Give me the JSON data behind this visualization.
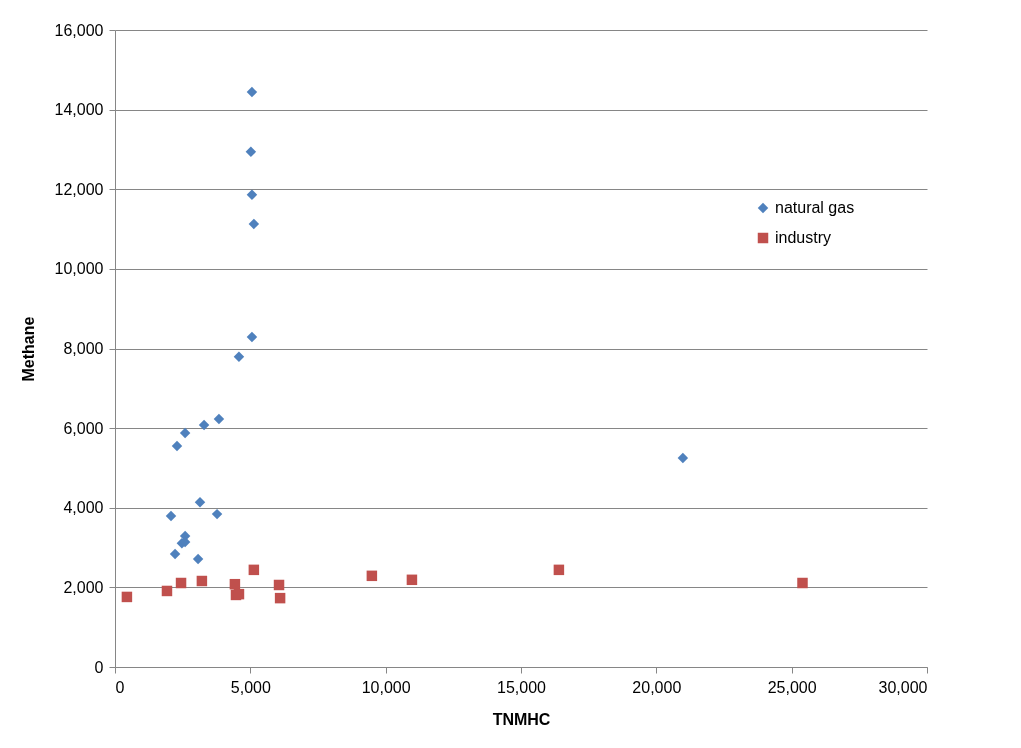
{
  "chart_data": {
    "type": "scatter",
    "xlabel": "TNMHC",
    "ylabel": "Methane",
    "xlim": [
      0,
      30000
    ],
    "xticks": [
      {
        "value": 0,
        "label": "0"
      },
      {
        "value": 5000,
        "label": "5,000"
      },
      {
        "value": 10000,
        "label": "10,000"
      },
      {
        "value": 15000,
        "label": "15,000"
      },
      {
        "value": 20000,
        "label": "20,000"
      },
      {
        "value": 25000,
        "label": "25,000"
      },
      {
        "value": 30000,
        "label": "30,000"
      }
    ],
    "ylim": [
      0,
      16000
    ],
    "yticks": [
      {
        "value": 0,
        "label": "0"
      },
      {
        "value": 2000,
        "label": "2,000"
      },
      {
        "value": 4000,
        "label": "4,000"
      },
      {
        "value": 6000,
        "label": "6,000"
      },
      {
        "value": 8000,
        "label": "8,000"
      },
      {
        "value": 10000,
        "label": "10,000"
      },
      {
        "value": 12000,
        "label": "12,000"
      },
      {
        "value": 14000,
        "label": "14,000"
      },
      {
        "value": 16000,
        "label": "16,000"
      }
    ],
    "grid": "y",
    "legend": "top right",
    "series": [
      {
        "name": "natural gas",
        "color": "#4f81bd",
        "marker": "diamond",
        "x": [
          5060,
          5020,
          5060,
          5130,
          5060,
          4580,
          3840,
          3290,
          2590,
          2290,
          20980,
          3140,
          2070,
          3770,
          2590,
          2470,
          2590,
          2220,
          3070
        ],
        "values": [
          14440,
          12940,
          11860,
          11130,
          8290,
          7790,
          6230,
          6080,
          5880,
          5550,
          5250,
          4140,
          3790,
          3840,
          3290,
          3110,
          3140,
          2840,
          2710
        ]
      },
      {
        "name": "industry",
        "color": "#c0504d",
        "marker": "square",
        "x": [
          440,
          1920,
          2440,
          3210,
          4430,
          4470,
          4580,
          5130,
          6060,
          6100,
          9490,
          10970,
          16400,
          25400
        ],
        "values": [
          1760,
          1910,
          2110,
          2160,
          2080,
          1810,
          1830,
          2440,
          2060,
          1730,
          2290,
          2190,
          2440,
          2110
        ]
      }
    ]
  }
}
